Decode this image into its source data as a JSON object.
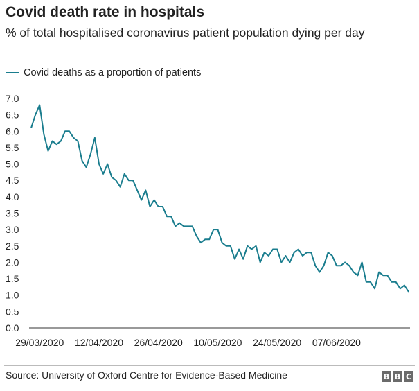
{
  "chart_data": {
    "type": "line",
    "title": "Covid death rate in hospitals",
    "subtitle": "% of total hospitalised coronavirus patient population dying per day",
    "xlabel": "",
    "ylabel": "",
    "ylim": [
      0,
      7
    ],
    "yticks": [
      "0.0",
      "0.5",
      "1.0",
      "1.5",
      "2.0",
      "2.5",
      "3.0",
      "3.5",
      "4.0",
      "4.5",
      "5.0",
      "5.5",
      "6.0",
      "6.5",
      "7.0"
    ],
    "xtick_labels": [
      "29/03/2020",
      "12/04/2020",
      "26/04/2020",
      "10/05/2020",
      "24/05/2020",
      "07/06/2020"
    ],
    "legend_position": "top-left",
    "grid": false,
    "color": "#1a7d8e",
    "series": [
      {
        "name": "Covid deaths as a proportion of patients",
        "values": [
          6.1,
          6.5,
          6.8,
          5.9,
          5.4,
          5.7,
          5.6,
          5.7,
          6.0,
          6.0,
          5.8,
          5.7,
          5.1,
          4.9,
          5.3,
          5.8,
          5.0,
          4.7,
          5.0,
          4.6,
          4.5,
          4.3,
          4.7,
          4.5,
          4.5,
          4.2,
          3.9,
          4.2,
          3.7,
          3.9,
          3.7,
          3.7,
          3.4,
          3.4,
          3.1,
          3.2,
          3.1,
          3.1,
          3.1,
          2.8,
          2.6,
          2.7,
          2.7,
          3.0,
          3.0,
          2.6,
          2.5,
          2.5,
          2.1,
          2.4,
          2.1,
          2.5,
          2.4,
          2.5,
          2.0,
          2.3,
          2.2,
          2.4,
          2.4,
          2.0,
          2.2,
          2.0,
          2.3,
          2.4,
          2.2,
          2.3,
          2.3,
          1.9,
          1.7,
          1.9,
          2.3,
          2.2,
          1.9,
          1.9,
          2.0,
          1.9,
          1.7,
          1.6,
          2.0,
          1.4,
          1.4,
          1.2,
          1.7,
          1.6,
          1.6,
          1.4,
          1.4,
          1.2,
          1.3,
          1.1
        ]
      }
    ]
  },
  "footer": {
    "source": "Source: University of Oxford Centre for Evidence-Based Medicine",
    "logo_letters": [
      "B",
      "B",
      "C"
    ]
  }
}
